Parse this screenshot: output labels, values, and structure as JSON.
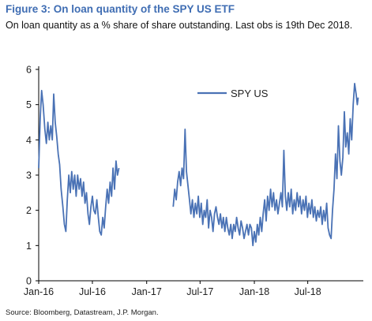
{
  "header": {
    "title": "Figure 3: On loan quantity of the SPY US ETF",
    "subtitle": "On loan quantity as a % share of share outstanding. Last obs is 19th Dec 2018."
  },
  "footer": {
    "source": "Source: Bloomberg, Datastream, J.P. Morgan."
  },
  "colors": {
    "series": "#4a72b5",
    "axis": "#000000",
    "title": "#3f6db3"
  },
  "chart_data": {
    "type": "line",
    "title": "Figure 3: On loan quantity of the SPY US ETF",
    "xlabel": "",
    "ylabel": "",
    "ylim": [
      0,
      6
    ],
    "yticks": [
      "0",
      "1",
      "2",
      "3",
      "4",
      "5",
      "6"
    ],
    "xlim": [
      "2016-01-01",
      "2018-12-31"
    ],
    "xticks": [
      {
        "label": "Jan-16",
        "date": "2016-01-01"
      },
      {
        "label": "Jul-16",
        "date": "2016-07-01"
      },
      {
        "label": "Jan-17",
        "date": "2017-01-01"
      },
      {
        "label": "Jul-17",
        "date": "2017-07-01"
      },
      {
        "label": "Jan-18",
        "date": "2018-01-01"
      },
      {
        "label": "Jul-18",
        "date": "2018-07-01"
      }
    ],
    "grid": false,
    "legend": "top-right",
    "series": [
      {
        "name": "SPY US",
        "segments": [
          [
            [
              "2016-01-01",
              3.2
            ],
            [
              "2016-01-06",
              4.6
            ],
            [
              "2016-01-11",
              5.4
            ],
            [
              "2016-01-16",
              5.0
            ],
            [
              "2016-01-22",
              4.3
            ],
            [
              "2016-01-27",
              3.9
            ],
            [
              "2016-02-01",
              4.5
            ],
            [
              "2016-02-06",
              4.0
            ],
            [
              "2016-02-11",
              4.4
            ],
            [
              "2016-02-16",
              4.0
            ],
            [
              "2016-02-21",
              5.3
            ],
            [
              "2016-02-26",
              4.5
            ],
            [
              "2016-03-02",
              4.1
            ],
            [
              "2016-03-07",
              3.6
            ],
            [
              "2016-03-12",
              3.3
            ],
            [
              "2016-03-17",
              2.6
            ],
            [
              "2016-03-23",
              2.1
            ],
            [
              "2016-03-28",
              1.6
            ],
            [
              "2016-04-02",
              1.4
            ],
            [
              "2016-04-07",
              2.3
            ],
            [
              "2016-04-12",
              3.0
            ],
            [
              "2016-04-17",
              2.5
            ],
            [
              "2016-04-22",
              3.1
            ],
            [
              "2016-04-27",
              2.6
            ],
            [
              "2016-05-02",
              3.0
            ],
            [
              "2016-05-07",
              2.4
            ],
            [
              "2016-05-12",
              3.0
            ],
            [
              "2016-05-17",
              2.6
            ],
            [
              "2016-05-22",
              2.9
            ],
            [
              "2016-05-27",
              2.4
            ],
            [
              "2016-06-01",
              2.8
            ],
            [
              "2016-06-06",
              2.2
            ],
            [
              "2016-06-11",
              2.5
            ],
            [
              "2016-06-16",
              1.9
            ],
            [
              "2016-06-21",
              1.6
            ],
            [
              "2016-06-26",
              2.1
            ],
            [
              "2016-07-01",
              2.4
            ],
            [
              "2016-07-06",
              2.0
            ],
            [
              "2016-07-11",
              1.9
            ],
            [
              "2016-07-16",
              2.3
            ],
            [
              "2016-07-21",
              1.8
            ],
            [
              "2016-07-26",
              1.4
            ],
            [
              "2016-07-31",
              1.3
            ],
            [
              "2016-08-05",
              1.8
            ],
            [
              "2016-08-10",
              1.5
            ],
            [
              "2016-08-15",
              2.1
            ],
            [
              "2016-08-20",
              2.6
            ],
            [
              "2016-08-25",
              2.2
            ],
            [
              "2016-08-30",
              2.8
            ],
            [
              "2016-09-04",
              2.4
            ],
            [
              "2016-09-09",
              3.2
            ],
            [
              "2016-09-14",
              2.6
            ],
            [
              "2016-09-19",
              3.4
            ],
            [
              "2016-09-24",
              3.0
            ],
            [
              "2016-09-29",
              3.2
            ]
          ],
          [
            [
              "2017-04-01",
              2.1
            ],
            [
              "2017-04-06",
              2.6
            ],
            [
              "2017-04-11",
              2.3
            ],
            [
              "2017-04-16",
              2.8
            ],
            [
              "2017-04-21",
              3.1
            ],
            [
              "2017-04-26",
              2.7
            ],
            [
              "2017-05-01",
              3.2
            ],
            [
              "2017-05-06",
              2.9
            ],
            [
              "2017-05-11",
              4.3
            ],
            [
              "2017-05-16",
              3.1
            ],
            [
              "2017-05-21",
              2.7
            ],
            [
              "2017-05-26",
              2.3
            ],
            [
              "2017-05-31",
              1.9
            ],
            [
              "2017-06-05",
              2.3
            ],
            [
              "2017-06-10",
              1.8
            ],
            [
              "2017-06-15",
              2.2
            ],
            [
              "2017-06-20",
              1.9
            ],
            [
              "2017-06-25",
              2.4
            ],
            [
              "2017-06-30",
              1.8
            ],
            [
              "2017-07-05",
              2.2
            ],
            [
              "2017-07-10",
              1.6
            ],
            [
              "2017-07-15",
              2.0
            ],
            [
              "2017-07-20",
              1.8
            ],
            [
              "2017-07-25",
              2.3
            ],
            [
              "2017-07-30",
              1.5
            ],
            [
              "2017-08-04",
              2.0
            ],
            [
              "2017-08-09",
              1.8
            ],
            [
              "2017-08-14",
              1.4
            ],
            [
              "2017-08-19",
              1.9
            ],
            [
              "2017-08-24",
              2.1
            ],
            [
              "2017-08-29",
              1.8
            ],
            [
              "2017-09-03",
              1.6
            ],
            [
              "2017-09-08",
              1.9
            ],
            [
              "2017-09-13",
              1.5
            ],
            [
              "2017-09-18",
              1.8
            ],
            [
              "2017-09-23",
              1.4
            ],
            [
              "2017-09-28",
              1.8
            ],
            [
              "2017-10-03",
              1.5
            ],
            [
              "2017-10-08",
              1.3
            ],
            [
              "2017-10-13",
              1.6
            ],
            [
              "2017-10-18",
              1.2
            ],
            [
              "2017-10-23",
              1.6
            ],
            [
              "2017-10-28",
              1.4
            ],
            [
              "2017-11-02",
              1.8
            ],
            [
              "2017-11-07",
              1.5
            ],
            [
              "2017-11-12",
              1.3
            ],
            [
              "2017-11-17",
              1.7
            ],
            [
              "2017-11-22",
              1.5
            ],
            [
              "2017-11-27",
              1.2
            ],
            [
              "2017-12-02",
              1.4
            ],
            [
              "2017-12-07",
              1.6
            ],
            [
              "2017-12-12",
              1.3
            ],
            [
              "2017-12-17",
              1.6
            ],
            [
              "2017-12-22",
              1.5
            ],
            [
              "2017-12-27",
              1.0
            ],
            [
              "2018-01-01",
              1.4
            ],
            [
              "2018-01-06",
              1.1
            ],
            [
              "2018-01-11",
              1.6
            ],
            [
              "2018-01-16",
              1.3
            ],
            [
              "2018-01-21",
              1.8
            ],
            [
              "2018-01-26",
              1.4
            ],
            [
              "2018-01-31",
              1.9
            ],
            [
              "2018-02-05",
              2.3
            ],
            [
              "2018-02-10",
              1.7
            ],
            [
              "2018-02-15",
              2.4
            ],
            [
              "2018-02-20",
              2.0
            ],
            [
              "2018-02-25",
              2.6
            ],
            [
              "2018-03-02",
              2.1
            ],
            [
              "2018-03-07",
              2.5
            ],
            [
              "2018-03-12",
              2.0
            ],
            [
              "2018-03-17",
              2.3
            ],
            [
              "2018-03-22",
              1.9
            ],
            [
              "2018-03-27",
              2.2
            ],
            [
              "2018-04-01",
              2.5
            ],
            [
              "2018-04-06",
              2.1
            ],
            [
              "2018-04-11",
              3.7
            ],
            [
              "2018-04-16",
              2.4
            ],
            [
              "2018-04-21",
              2.0
            ],
            [
              "2018-04-26",
              2.5
            ],
            [
              "2018-05-01",
              2.1
            ],
            [
              "2018-05-06",
              2.6
            ],
            [
              "2018-05-11",
              1.9
            ],
            [
              "2018-05-16",
              2.3
            ],
            [
              "2018-05-21",
              2.0
            ],
            [
              "2018-05-26",
              2.5
            ],
            [
              "2018-05-31",
              2.1
            ],
            [
              "2018-06-05",
              2.4
            ],
            [
              "2018-06-10",
              1.9
            ],
            [
              "2018-06-15",
              2.3
            ],
            [
              "2018-06-20",
              2.0
            ],
            [
              "2018-06-25",
              2.4
            ],
            [
              "2018-06-30",
              1.8
            ],
            [
              "2018-07-05",
              2.2
            ],
            [
              "2018-07-10",
              1.9
            ],
            [
              "2018-07-15",
              2.3
            ],
            [
              "2018-07-20",
              1.8
            ],
            [
              "2018-07-25",
              2.1
            ],
            [
              "2018-07-30",
              1.7
            ],
            [
              "2018-08-04",
              2.0
            ],
            [
              "2018-08-09",
              1.8
            ],
            [
              "2018-08-14",
              2.1
            ],
            [
              "2018-08-19",
              1.6
            ],
            [
              "2018-08-24",
              2.0
            ],
            [
              "2018-08-29",
              1.7
            ],
            [
              "2018-09-03",
              2.2
            ],
            [
              "2018-09-08",
              1.5
            ],
            [
              "2018-09-13",
              1.3
            ],
            [
              "2018-09-18",
              1.2
            ],
            [
              "2018-09-23",
              2.0
            ],
            [
              "2018-09-28",
              2.6
            ],
            [
              "2018-10-03",
              3.6
            ],
            [
              "2018-10-08",
              2.9
            ],
            [
              "2018-10-13",
              4.4
            ],
            [
              "2018-10-18",
              3.4
            ],
            [
              "2018-10-23",
              3.0
            ],
            [
              "2018-10-28",
              3.5
            ],
            [
              "2018-11-02",
              4.8
            ],
            [
              "2018-11-07",
              3.8
            ],
            [
              "2018-11-12",
              4.2
            ],
            [
              "2018-11-17",
              3.6
            ],
            [
              "2018-11-22",
              4.6
            ],
            [
              "2018-11-27",
              4.0
            ],
            [
              "2018-12-02",
              5.0
            ],
            [
              "2018-12-07",
              5.6
            ],
            [
              "2018-12-12",
              5.3
            ],
            [
              "2018-12-16",
              5.0
            ],
            [
              "2018-12-19",
              5.2
            ]
          ]
        ]
      }
    ]
  }
}
